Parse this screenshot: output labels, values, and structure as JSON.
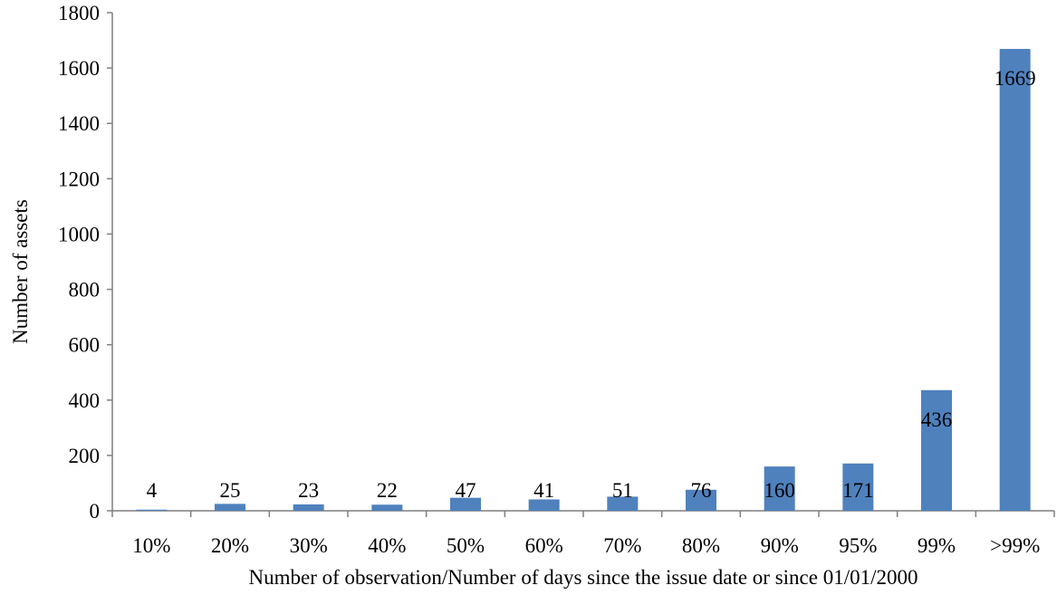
{
  "chart_data": {
    "type": "bar",
    "title": "",
    "xlabel": "Number of observation/Number of days since the issue date or since 01/01/2000",
    "ylabel": "Number of assets",
    "categories": [
      "10%",
      "20%",
      "30%",
      "40%",
      "50%",
      "60%",
      "70%",
      "80%",
      "90%",
      "95%",
      "99%",
      ">99%"
    ],
    "values": [
      4,
      25,
      23,
      22,
      47,
      41,
      51,
      76,
      160,
      171,
      436,
      1669
    ],
    "data_labels": [
      "4",
      "25",
      "23",
      "22",
      "47",
      "41",
      "51",
      "76",
      "160",
      "171",
      "436",
      "1669"
    ],
    "ylim": [
      0,
      1800
    ],
    "yticks": [
      0,
      200,
      400,
      600,
      800,
      1000,
      1200,
      1400,
      1600,
      1800
    ],
    "ytick_labels": [
      "0",
      "200",
      "400",
      "600",
      "800",
      "1000",
      "1200",
      "1400",
      "1600",
      "1800"
    ],
    "grid": false,
    "legend": "none",
    "colors": {
      "bar": "#4f81bd",
      "axis": "#7f7f7f",
      "text": "#000000"
    }
  }
}
